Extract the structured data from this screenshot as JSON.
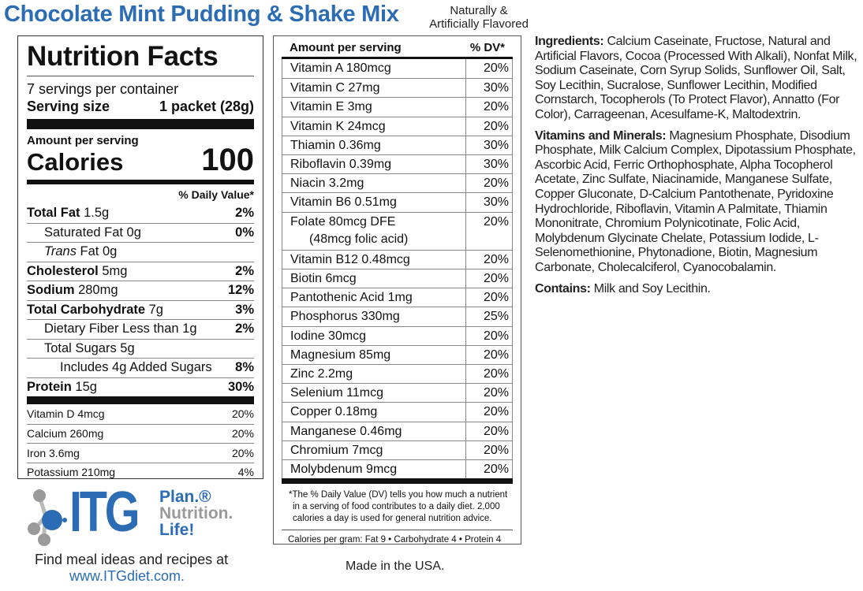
{
  "title": "Chocolate Mint Pudding & Shake Mix",
  "flavor": [
    "Naturally &",
    "Artificially Flavored"
  ],
  "facts": {
    "heading": "Nutrition Facts",
    "servings": "7 servings per container",
    "serving_label": "Serving size",
    "serving_value": "1 packet (28g)",
    "amount_label": "Amount per serving",
    "calories_label": "Calories",
    "calories_value": "100",
    "dv_header": "% Daily Value*",
    "rows": [
      {
        "bold": "Total Fat",
        "text": " 1.5g",
        "dv": "2%",
        "indent": 0
      },
      {
        "bold": "",
        "text": "Saturated Fat 0g",
        "dv": "0%",
        "indent": 1
      },
      {
        "bold": "",
        "italic": "Trans",
        "text": " Fat 0g",
        "dv": "",
        "indent": 1
      },
      {
        "bold": "Cholesterol",
        "text": " 5mg",
        "dv": "2%",
        "indent": 0
      },
      {
        "bold": "Sodium",
        "text": " 280mg",
        "dv": "12%",
        "indent": 0
      },
      {
        "bold": "Total Carbohydrate",
        "text": " 7g",
        "dv": "3%",
        "indent": 0
      },
      {
        "bold": "",
        "text": "Dietary Fiber  Less than 1g",
        "dv": "2%",
        "indent": 1
      },
      {
        "bold": "",
        "text": "Total Sugars 5g",
        "dv": "",
        "indent": 1
      },
      {
        "bold": "",
        "text": "Includes 4g Added Sugars",
        "dv": "8%",
        "indent": 2
      },
      {
        "bold": "Protein",
        "text": " 15g",
        "dv": "30%",
        "indent": 0
      }
    ],
    "minerals": [
      {
        "text": "Vitamin D 4mcg",
        "dv": "20%"
      },
      {
        "text": "Calcium 260mg",
        "dv": "20%"
      },
      {
        "text": "Iron 3.6mg",
        "dv": "20%"
      },
      {
        "text": "Potassium 210mg",
        "dv": "4%"
      }
    ]
  },
  "vitamins": {
    "amount_label": "Amount per serving",
    "dv_label": "% DV*",
    "rows": [
      {
        "text": "Vitamin A  180mcg",
        "dv": "20%"
      },
      {
        "text": "Vitamin C  27mg",
        "dv": "30%"
      },
      {
        "text": "Vitamin E  3mg",
        "dv": "20%"
      },
      {
        "text": "Vitamin K  24mcg",
        "dv": "20%"
      },
      {
        "text": "Thiamin  0.36mg",
        "dv": "30%"
      },
      {
        "text": "Riboflavin  0.39mg",
        "dv": "30%"
      },
      {
        "text": "Niacin  3.2mg",
        "dv": "20%"
      },
      {
        "text": "Vitamin B6 0.51mg",
        "dv": "30%"
      },
      {
        "text": "Folate 80mcg DFE",
        "sub": "(48mcg folic acid)",
        "dv": "20%"
      },
      {
        "text": "Vitamin B12 0.48mcg",
        "dv": "20%"
      },
      {
        "text": "Biotin  6mcg",
        "dv": "20%"
      },
      {
        "text": "Pantothenic Acid  1mg",
        "dv": "20%"
      },
      {
        "text": "Phosphorus  330mg",
        "dv": "25%"
      },
      {
        "text": "Iodine  30mcg",
        "dv": "20%"
      },
      {
        "text": "Magnesium  85mg",
        "dv": "20%"
      },
      {
        "text": "Zinc  2.2mg",
        "dv": "20%"
      },
      {
        "text": "Selenium  11mcg",
        "dv": "20%"
      },
      {
        "text": "Copper  0.18mg",
        "dv": "20%"
      },
      {
        "text": "Manganese  0.46mg",
        "dv": "20%"
      },
      {
        "text": "Chromium  7mcg",
        "dv": "20%"
      },
      {
        "text": "Molybdenum  9mcg",
        "dv": "20%"
      }
    ],
    "footnote": "*The % Daily Value (DV) tells you how much a nutrient in a serving of food contributes to a daily diet. 2,000 calories a day is used for general nutrition advice.",
    "calories_per_gram": "Calories per gram: Fat 9 • Carbohydrate 4 • Protein 4"
  },
  "ingredients": {
    "label": "Ingredients:",
    "text": " Calcium Caseinate, Fructose, Natural and Artificial Flavors, Cocoa (Processed With Alkali), Nonfat Milk, Sodium Caseinate, Corn Syrup Solids, Sunflower Oil, Salt, Soy Lecithin, Sucralose, Sunflower Lecithin, Modified Cornstarch, Tocopherols (To Protect Flavor), Annatto (For Color), Carrageenan, Acesulfame-K, Maltodextrin.",
    "vm_label": "Vitamins and Minerals:",
    "vm_text": " Magnesium Phosphate, Disodium Phosphate, Milk Calcium Complex, Dipotassium Phosphate, Ascorbic Acid, Ferric Orthophosphate, Alpha Tocopherol Acetate, Zinc Sulfate, Niacinamide, Manganese Sulfate, Copper Gluconate, D-Calcium Pantothenate, Pyridoxine Hydrochloride, Riboflavin, Vitamin A Palmitate, Thiamin Mononitrate, Chromium Polynicotinate, Folic Acid, Molybdenum Glycinate Chelate, Potassium Iodide, L-Selenomethionine, Phytonadione, Biotin, Magnesium Carbonate, Cholecalciferol, Cyanocobalamin.",
    "contains_label": "Contains:",
    "contains_text": " Milk and Soy Lecithin."
  },
  "logo": {
    "brand": "ITG",
    "line1": "Plan.®",
    "line2": "Nutrition.",
    "line3": "Life!",
    "tagline": "Find meal ideas and recipes at",
    "url": "www.ITGdiet.com."
  },
  "made_in": "Made in the USA.",
  "colors": {
    "brand_blue": "#2b6cb5",
    "gray": "#9a9a9a"
  }
}
